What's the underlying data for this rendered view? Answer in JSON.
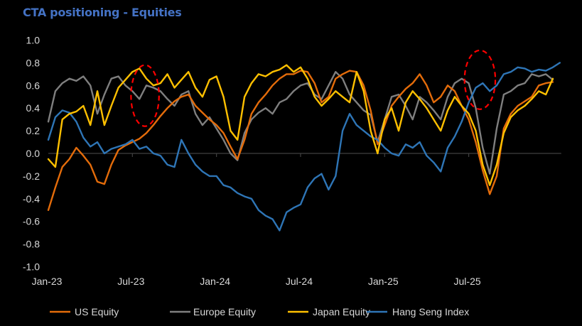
{
  "chart_data": {
    "type": "line",
    "title": "CTA positioning - Equities",
    "xlabel": "",
    "ylabel": "",
    "ylim": [
      -1.0,
      1.0
    ],
    "yticks": [
      "1.0",
      "0.8",
      "0.6",
      "0.4",
      "0.2",
      "0.0",
      "-0.2",
      "-0.4",
      "-0.6",
      "-0.8",
      "-1.0"
    ],
    "ytick_values": [
      1.0,
      0.8,
      0.6,
      0.4,
      0.2,
      0.0,
      -0.2,
      -0.4,
      -0.6,
      -0.8,
      -1.0
    ],
    "xticks": [
      "Jan-23",
      "Jul-23",
      "Jan-24",
      "Jul-24",
      "Jan-25",
      "Jul-25"
    ],
    "xtick_months": [
      0,
      6,
      12,
      18,
      24,
      30
    ],
    "x_unit": "months since Jan-2023",
    "x_step": 0.5,
    "x_start": 0,
    "legend_position": "bottom",
    "grid": false,
    "annotations": [
      {
        "type": "dashed-ellipse",
        "color": "#ff0000",
        "center_month": 6.9,
        "center_value": 0.51,
        "halfwidth_months": 1.0,
        "halfheight_value": 0.27
      },
      {
        "type": "dashed-ellipse",
        "color": "#ff0000",
        "center_month": 30.8,
        "center_value": 0.65,
        "halfwidth_months": 1.1,
        "halfheight_value": 0.26
      }
    ],
    "series": [
      {
        "name": "US Equity",
        "color": "#e46c0a",
        "values": [
          -0.5,
          -0.3,
          -0.12,
          -0.05,
          0.05,
          -0.02,
          -0.1,
          -0.25,
          -0.27,
          -0.1,
          0.03,
          0.07,
          0.1,
          0.13,
          0.18,
          0.25,
          0.33,
          0.4,
          0.46,
          0.5,
          0.52,
          0.42,
          0.36,
          0.3,
          0.25,
          0.18,
          0.06,
          -0.05,
          0.12,
          0.35,
          0.45,
          0.52,
          0.6,
          0.66,
          0.7,
          0.7,
          0.73,
          0.72,
          0.62,
          0.45,
          0.5,
          0.66,
          0.7,
          0.73,
          0.72,
          0.6,
          0.38,
          0.08,
          0.25,
          0.42,
          0.5,
          0.57,
          0.62,
          0.7,
          0.6,
          0.45,
          0.5,
          0.6,
          0.55,
          0.42,
          0.3,
          0.1,
          -0.15,
          -0.36,
          -0.2,
          0.22,
          0.35,
          0.42,
          0.46,
          0.5,
          0.6,
          0.62,
          0.63
        ]
      },
      {
        "name": "Europe Equity",
        "color": "#7f7f7f",
        "values": [
          0.28,
          0.55,
          0.62,
          0.66,
          0.64,
          0.68,
          0.6,
          0.35,
          0.52,
          0.66,
          0.68,
          0.6,
          0.55,
          0.48,
          0.6,
          0.58,
          0.55,
          0.48,
          0.42,
          0.52,
          0.55,
          0.35,
          0.25,
          0.32,
          0.22,
          0.12,
          0.0,
          -0.06,
          0.18,
          0.3,
          0.36,
          0.4,
          0.35,
          0.45,
          0.48,
          0.55,
          0.6,
          0.62,
          0.52,
          0.48,
          0.6,
          0.72,
          0.66,
          0.52,
          0.45,
          0.38,
          0.34,
          0.1,
          0.3,
          0.5,
          0.52,
          0.42,
          0.3,
          0.5,
          0.45,
          0.38,
          0.3,
          0.5,
          0.62,
          0.66,
          0.62,
          0.4,
          0.05,
          -0.18,
          0.22,
          0.52,
          0.55,
          0.6,
          0.62,
          0.7,
          0.68,
          0.7,
          0.65
        ]
      },
      {
        "name": "Japan Equity",
        "color": "#ffc000",
        "values": [
          -0.05,
          -0.12,
          0.3,
          0.35,
          0.37,
          0.42,
          0.25,
          0.55,
          0.25,
          0.42,
          0.58,
          0.65,
          0.72,
          0.75,
          0.66,
          0.6,
          0.62,
          0.7,
          0.58,
          0.65,
          0.72,
          0.58,
          0.5,
          0.65,
          0.68,
          0.5,
          0.2,
          0.12,
          0.5,
          0.62,
          0.7,
          0.68,
          0.72,
          0.74,
          0.78,
          0.72,
          0.76,
          0.66,
          0.5,
          0.42,
          0.48,
          0.55,
          0.5,
          0.45,
          0.72,
          0.55,
          0.2,
          0.0,
          0.3,
          0.4,
          0.2,
          0.45,
          0.55,
          0.48,
          0.4,
          0.3,
          0.2,
          0.38,
          0.5,
          0.42,
          0.35,
          0.2,
          -0.1,
          -0.28,
          -0.1,
          0.18,
          0.32,
          0.38,
          0.42,
          0.48,
          0.55,
          0.52,
          0.66
        ]
      },
      {
        "name": "Hang Seng Index",
        "color": "#2e75b6",
        "values": [
          0.12,
          0.32,
          0.38,
          0.36,
          0.28,
          0.14,
          0.06,
          0.1,
          0.0,
          0.04,
          0.06,
          0.08,
          0.12,
          0.04,
          0.06,
          0.0,
          -0.02,
          -0.1,
          -0.12,
          0.12,
          0.0,
          -0.1,
          -0.16,
          -0.2,
          -0.2,
          -0.28,
          -0.3,
          -0.35,
          -0.38,
          -0.4,
          -0.5,
          -0.55,
          -0.58,
          -0.68,
          -0.52,
          -0.48,
          -0.45,
          -0.3,
          -0.22,
          -0.18,
          -0.32,
          -0.2,
          0.2,
          0.35,
          0.25,
          0.2,
          0.15,
          0.12,
          0.05,
          0.0,
          -0.02,
          0.08,
          0.05,
          0.1,
          -0.02,
          -0.08,
          -0.16,
          0.05,
          0.15,
          0.28,
          0.45,
          0.58,
          0.62,
          0.55,
          0.6,
          0.7,
          0.72,
          0.76,
          0.75,
          0.72,
          0.74,
          0.73,
          0.76,
          0.8
        ]
      }
    ]
  }
}
